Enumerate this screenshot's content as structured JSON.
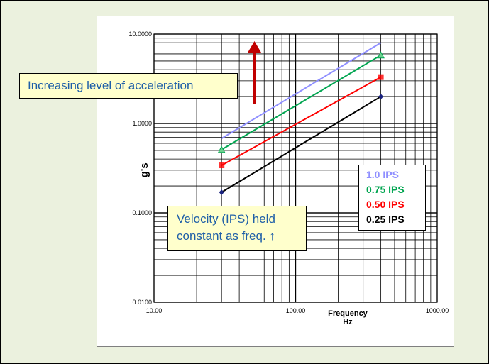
{
  "callouts": {
    "acceleration": "Increasing level of acceleration",
    "velocity_line1": "Velocity (IPS) held",
    "velocity_line2": "constant as freq. ↑"
  },
  "colors": {
    "background": "#ebf1de",
    "callout_fill": "#ffffcc",
    "callout_text": "#1f5fa8",
    "arrow": "#c00000"
  },
  "chart_data": {
    "type": "line",
    "x_scale": "log",
    "y_scale": "log",
    "xlim": [
      10,
      1000
    ],
    "ylim": [
      0.01,
      10
    ],
    "x_tick_labels": [
      "10.00",
      "100.00",
      "1000.00"
    ],
    "y_tick_labels": [
      "10.0000",
      "1.0000",
      "0.1000",
      "0.0100"
    ],
    "xlabel_line1": "Frequency",
    "xlabel_line2": "Hz",
    "ylabel": "g's",
    "grid": true,
    "legend_position": "right",
    "series": [
      {
        "name": "1.0 IPS",
        "color": "#8f8fff",
        "marker": "none",
        "x": [
          30,
          400
        ],
        "y": [
          0.68,
          8.0
        ]
      },
      {
        "name": "0.75 IPS",
        "color": "#00a550",
        "marker": "triangle",
        "x": [
          30,
          400
        ],
        "y": [
          0.51,
          5.8
        ]
      },
      {
        "name": "0.50 IPS",
        "color": "#ff0000",
        "marker": "square",
        "x": [
          30,
          400
        ],
        "y": [
          0.34,
          3.3
        ]
      },
      {
        "name": "0.25 IPS",
        "color": "#000000",
        "marker": "diamond",
        "x": [
          30,
          400
        ],
        "y": [
          0.17,
          2.0
        ]
      }
    ]
  }
}
